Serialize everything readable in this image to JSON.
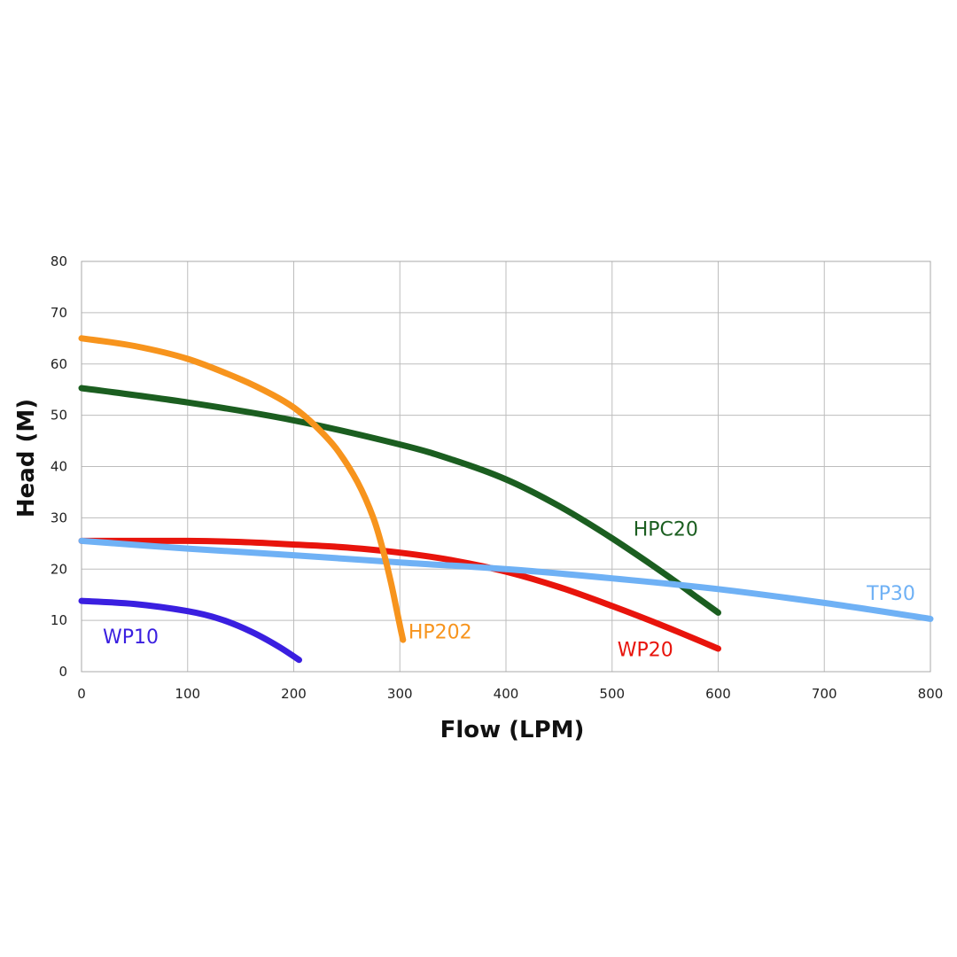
{
  "chart_data": {
    "type": "line",
    "title": "",
    "xlabel": "Flow (LPM)",
    "ylabel": "Head (M)",
    "xlim": [
      0,
      800
    ],
    "ylim": [
      0,
      80
    ],
    "xticks": [
      0,
      100,
      200,
      300,
      400,
      500,
      600,
      700,
      800
    ],
    "yticks": [
      0,
      10,
      20,
      30,
      40,
      50,
      60,
      70,
      80
    ],
    "grid": true,
    "legend": "none",
    "series": [
      {
        "name": "HP202",
        "color": "#F7941D",
        "points": [
          [
            0,
            65
          ],
          [
            50,
            63.5
          ],
          [
            100,
            61
          ],
          [
            150,
            57
          ],
          [
            180,
            54
          ],
          [
            200,
            51.5
          ],
          [
            220,
            48
          ],
          [
            240,
            43.5
          ],
          [
            260,
            37
          ],
          [
            275,
            30
          ],
          [
            285,
            23
          ],
          [
            292,
            17
          ],
          [
            297,
            12
          ],
          [
            300,
            9
          ],
          [
            303,
            6.2
          ]
        ]
      },
      {
        "name": "HPC20",
        "color": "#1B5E20",
        "points": [
          [
            0,
            55.3
          ],
          [
            100,
            52.5
          ],
          [
            200,
            49
          ],
          [
            300,
            44.3
          ],
          [
            350,
            41.3
          ],
          [
            400,
            37.5
          ],
          [
            450,
            32.3
          ],
          [
            500,
            26
          ],
          [
            550,
            19
          ],
          [
            580,
            14.5
          ],
          [
            600,
            11.5
          ]
        ]
      },
      {
        "name": "WP20",
        "color": "#E8140C",
        "points": [
          [
            0,
            25.5
          ],
          [
            100,
            25.5
          ],
          [
            150,
            25.3
          ],
          [
            200,
            24.8
          ],
          [
            250,
            24.2
          ],
          [
            300,
            23.2
          ],
          [
            350,
            21.7
          ],
          [
            400,
            19.5
          ],
          [
            450,
            16.5
          ],
          [
            500,
            12.8
          ],
          [
            550,
            8.8
          ],
          [
            600,
            4.5
          ]
        ]
      },
      {
        "name": "TP30",
        "color": "#6FB1F5",
        "points": [
          [
            0,
            25.5
          ],
          [
            100,
            24
          ],
          [
            200,
            22.7
          ],
          [
            300,
            21.3
          ],
          [
            400,
            20
          ],
          [
            500,
            18.2
          ],
          [
            600,
            16.1
          ],
          [
            700,
            13.4
          ],
          [
            800,
            10.3
          ]
        ]
      },
      {
        "name": "WP10",
        "color": "#3A1FE0",
        "points": [
          [
            0,
            13.8
          ],
          [
            50,
            13.2
          ],
          [
            100,
            11.8
          ],
          [
            130,
            10.3
          ],
          [
            160,
            7.8
          ],
          [
            185,
            5
          ],
          [
            205,
            2.3
          ]
        ]
      }
    ],
    "annotations": [
      {
        "series": "HPC20",
        "text": "HPC20",
        "x": 520,
        "y": 26.5
      },
      {
        "series": "TP30",
        "text": "TP30",
        "x": 740,
        "y": 14
      },
      {
        "series": "HP202",
        "text": "HP202",
        "x": 308,
        "y": 6.5
      },
      {
        "series": "WP20",
        "text": "WP20",
        "x": 505,
        "y": 3
      },
      {
        "series": "WP10",
        "text": "WP10",
        "x": 20,
        "y": 5.5
      }
    ]
  }
}
